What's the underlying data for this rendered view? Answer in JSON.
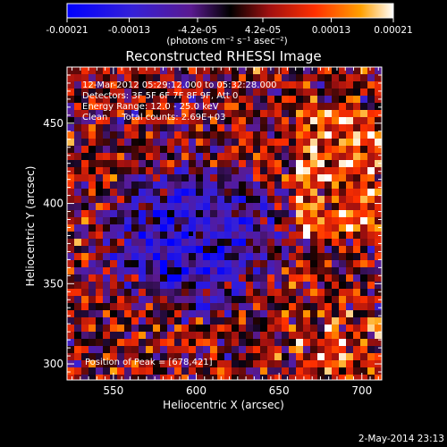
{
  "chart_data": {
    "type": "heatmap",
    "title": "Reconstructed RHESSI Image",
    "xlabel": "Heliocentric X (arcsec)",
    "ylabel": "Heliocentric Y (arcsec)",
    "xlim": [
      522,
      712
    ],
    "ylim": [
      290,
      485
    ],
    "x_ticks": [
      550,
      600,
      650,
      700
    ],
    "y_ticks": [
      300,
      350,
      400,
      450
    ],
    "colorbar": {
      "min": -0.00021,
      "max": 0.00021,
      "tick_values": [
        -0.00021,
        -0.00013,
        -4.2e-05,
        4.2e-05,
        0.00013,
        0.00021
      ],
      "tick_labels": [
        "-0.00021",
        "-0.00013",
        "-4.2e-05",
        "4.2e-05",
        "0.00013",
        "0.00021"
      ],
      "units_label": "(photons cm⁻² s⁻¹ asec⁻²)"
    },
    "annotations": {
      "time_range": "12-Mar-2012 05:29:12.000 to 05:32:28.000",
      "detectors": "Detectors: 3F 5F 6F 7F 8F 9F, Att 0",
      "energy": "Energy Range: 12.0 - 25.0 keV",
      "method_counts": "Clean     Total counts: 2.69E+03",
      "peak": "Position of Peak = [678,421]"
    },
    "peak_position": [
      678,
      421
    ],
    "footer_date": "2-May-2014 23:13"
  }
}
